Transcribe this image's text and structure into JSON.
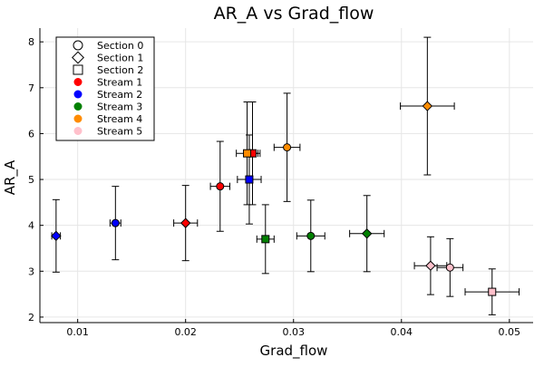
{
  "chart_data": {
    "type": "scatter",
    "title": "AR_A vs Grad_flow",
    "xlabel": "Grad_flow",
    "ylabel": "AR_A",
    "xlim": [
      0.0065,
      0.0522
    ],
    "ylim": [
      1.88,
      8.3
    ],
    "x_ticks": [
      0.01,
      0.02,
      0.03,
      0.04,
      0.05
    ],
    "x_tick_labels": [
      "0.01",
      "0.02",
      "0.03",
      "0.04",
      "0.05"
    ],
    "y_ticks": [
      2,
      3,
      4,
      5,
      6,
      7,
      8
    ],
    "y_tick_labels": [
      "2",
      "3",
      "4",
      "5",
      "6",
      "7",
      "8"
    ],
    "grid": true,
    "legend_position": "top-left",
    "legend": [
      {
        "label": "Section 0",
        "marker": "circle",
        "color": "#ffffff",
        "kind": "marker"
      },
      {
        "label": "Section 1",
        "marker": "diamond",
        "color": "#ffffff",
        "kind": "marker"
      },
      {
        "label": "Section 2",
        "marker": "square",
        "color": "#ffffff",
        "kind": "marker"
      },
      {
        "label": "Stream 1",
        "marker": "circle",
        "color": "#ff0000",
        "kind": "color"
      },
      {
        "label": "Stream 2",
        "marker": "circle",
        "color": "#0000ff",
        "kind": "color"
      },
      {
        "label": "Stream 3",
        "marker": "circle",
        "color": "#008000",
        "kind": "color"
      },
      {
        "label": "Stream 4",
        "marker": "circle",
        "color": "#ff8c00",
        "kind": "color"
      },
      {
        "label": "Stream 5",
        "marker": "circle",
        "color": "#ffc0cb",
        "kind": "color"
      }
    ],
    "points": [
      {
        "stream": "Stream 1",
        "section": "Section 0",
        "x": 0.0232,
        "y": 4.85,
        "xerr": 0.0009,
        "yerr": 0.98,
        "color": "#ff0000",
        "marker": "circle"
      },
      {
        "stream": "Stream 1",
        "section": "Section 1",
        "x": 0.02,
        "y": 4.05,
        "xerr": 0.0011,
        "yerr": 0.82,
        "color": "#ff0000",
        "marker": "diamond"
      },
      {
        "stream": "Stream 1",
        "section": "Section 2",
        "x": 0.0262,
        "y": 5.57,
        "xerr": 0.0007,
        "yerr": 1.12,
        "color": "#ff0000",
        "marker": "square"
      },
      {
        "stream": "Stream 2",
        "section": "Section 0",
        "x": 0.0135,
        "y": 4.05,
        "xerr": 0.0005,
        "yerr": 0.8,
        "color": "#0000ff",
        "marker": "circle"
      },
      {
        "stream": "Stream 2",
        "section": "Section 1",
        "x": 0.008,
        "y": 3.77,
        "xerr": 0.0004,
        "yerr": 0.79,
        "color": "#0000ff",
        "marker": "diamond"
      },
      {
        "stream": "Stream 2",
        "section": "Section 2",
        "x": 0.0259,
        "y": 5.0,
        "xerr": 0.0011,
        "yerr": 0.97,
        "color": "#0000ff",
        "marker": "square"
      },
      {
        "stream": "Stream 3",
        "section": "Section 0",
        "x": 0.0316,
        "y": 3.77,
        "xerr": 0.0013,
        "yerr": 0.78,
        "color": "#008000",
        "marker": "circle"
      },
      {
        "stream": "Stream 3",
        "section": "Section 1",
        "x": 0.0368,
        "y": 3.82,
        "xerr": 0.0016,
        "yerr": 0.83,
        "color": "#008000",
        "marker": "diamond"
      },
      {
        "stream": "Stream 3",
        "section": "Section 2",
        "x": 0.0274,
        "y": 3.7,
        "xerr": 0.0008,
        "yerr": 0.75,
        "color": "#008000",
        "marker": "square"
      },
      {
        "stream": "Stream 4",
        "section": "Section 0",
        "x": 0.0294,
        "y": 5.7,
        "xerr": 0.0012,
        "yerr": 1.18,
        "color": "#ff8c00",
        "marker": "circle"
      },
      {
        "stream": "Stream 4",
        "section": "Section 1",
        "x": 0.0424,
        "y": 6.6,
        "xerr": 0.0025,
        "yerr": 1.5,
        "color": "#ff8c00",
        "marker": "diamond"
      },
      {
        "stream": "Stream 4",
        "section": "Section 2",
        "x": 0.0257,
        "y": 5.57,
        "xerr": 0.001,
        "yerr": 1.12,
        "color": "#ff8c00",
        "marker": "square"
      },
      {
        "stream": "Stream 5",
        "section": "Section 0",
        "x": 0.0445,
        "y": 3.08,
        "xerr": 0.0012,
        "yerr": 0.63,
        "color": "#ffc0cb",
        "marker": "circle"
      },
      {
        "stream": "Stream 5",
        "section": "Section 1",
        "x": 0.0427,
        "y": 3.12,
        "xerr": 0.0015,
        "yerr": 0.63,
        "color": "#ffc0cb",
        "marker": "diamond"
      },
      {
        "stream": "Stream 5",
        "section": "Section 2",
        "x": 0.0484,
        "y": 2.55,
        "xerr": 0.0025,
        "yerr": 0.5,
        "color": "#ffc0cb",
        "marker": "square"
      }
    ]
  }
}
